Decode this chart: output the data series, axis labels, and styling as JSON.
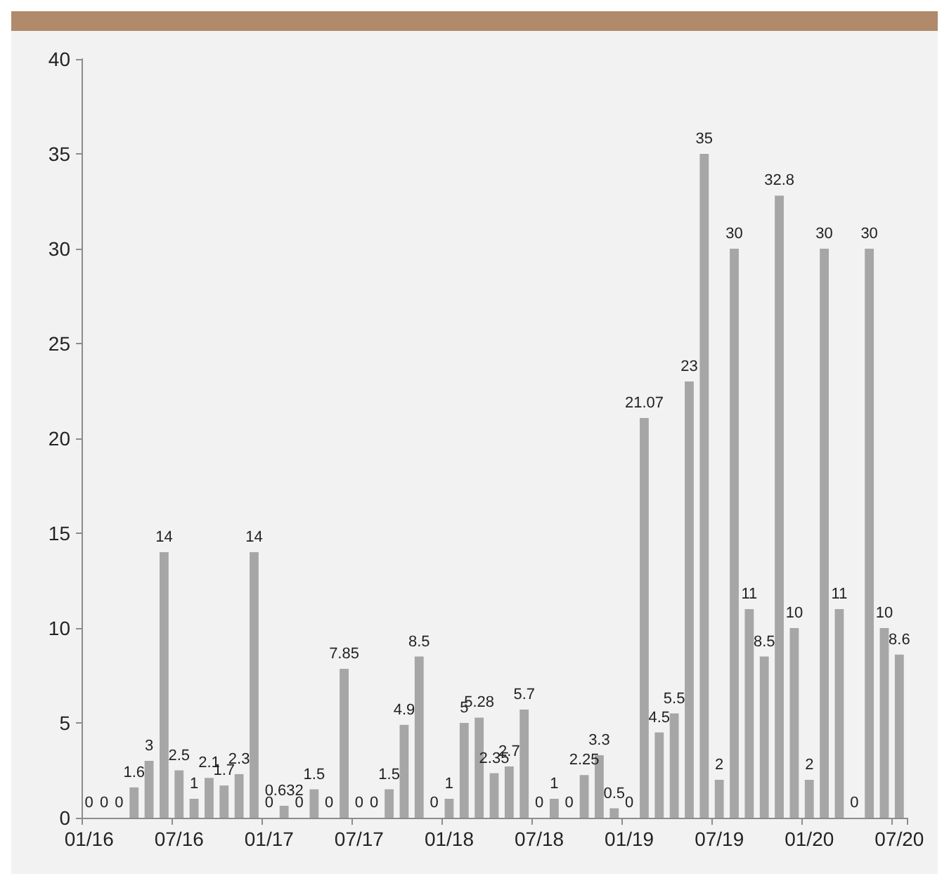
{
  "chart_data": {
    "type": "bar",
    "categories": [
      "01/16",
      null,
      null,
      null,
      null,
      null,
      "07/16",
      null,
      null,
      null,
      null,
      null,
      "01/17",
      null,
      null,
      null,
      null,
      null,
      "07/17",
      null,
      null,
      null,
      null,
      null,
      "01/18",
      null,
      null,
      null,
      null,
      null,
      "07/18",
      null,
      null,
      null,
      null,
      null,
      "01/19",
      null,
      null,
      null,
      null,
      null,
      "07/19",
      null,
      null,
      null,
      null,
      null,
      "01/20",
      null,
      null,
      null,
      null,
      null,
      "07/20"
    ],
    "values": [
      0,
      0,
      0,
      1.6,
      3,
      14,
      2.5,
      1,
      2.1,
      1.7,
      2.3,
      14,
      0,
      0.632,
      0,
      1.5,
      0,
      7.85,
      0,
      0,
      1.5,
      4.9,
      8.5,
      0,
      1,
      5,
      5.28,
      2.35,
      2.7,
      5.7,
      0,
      1,
      0,
      2.25,
      3.3,
      0.5,
      0,
      21.07,
      4.5,
      5.5,
      23,
      35,
      2,
      30,
      11,
      8.5,
      32.8,
      10,
      2,
      30,
      11,
      0,
      30,
      10,
      8.6
    ],
    "color": "#a6a6a6",
    "ylim": [
      0,
      40
    ],
    "yticks": [
      0,
      5,
      10,
      15,
      20,
      25,
      30,
      35,
      40
    ],
    "grid": false,
    "data_labels": true
  }
}
